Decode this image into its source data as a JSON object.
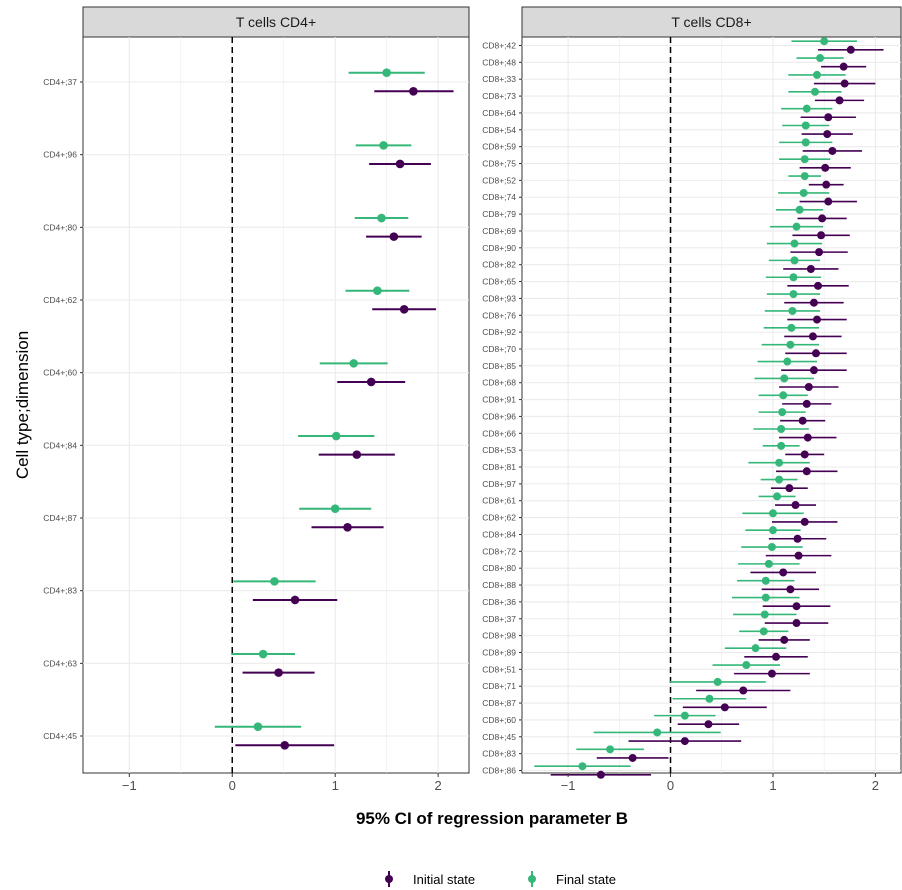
{
  "chart_data": {
    "type": "scatter",
    "xlabel": "95% CI of regression parameter B",
    "ylabel": "Cell type;dimension",
    "grid": true,
    "reference_line_x": 0,
    "legend": {
      "position": "bottom",
      "entries": [
        {
          "label": "Initial state",
          "color": "#440154"
        },
        {
          "label": "Final state",
          "color": "#35b779"
        }
      ]
    },
    "panels": [
      {
        "title": "T cells CD4+",
        "xlim": [
          -1.45,
          2.3
        ],
        "xticks": [
          -1,
          0,
          1,
          2
        ],
        "categories": [
          "CD4+;37",
          "CD4+;96",
          "CD4+;80",
          "CD4+;62",
          "CD4+;60",
          "CD4+;84",
          "CD4+;87",
          "CD4+;83",
          "CD4+;63",
          "CD4+;45"
        ],
        "initial": [
          {
            "est": 1.76,
            "lo": 1.38,
            "hi": 2.15
          },
          {
            "est": 1.63,
            "lo": 1.33,
            "hi": 1.93
          },
          {
            "est": 1.57,
            "lo": 1.3,
            "hi": 1.84
          },
          {
            "est": 1.67,
            "lo": 1.36,
            "hi": 1.98
          },
          {
            "est": 1.35,
            "lo": 1.02,
            "hi": 1.68
          },
          {
            "est": 1.21,
            "lo": 0.84,
            "hi": 1.58
          },
          {
            "est": 1.12,
            "lo": 0.77,
            "hi": 1.47
          },
          {
            "est": 0.61,
            "lo": 0.2,
            "hi": 1.02
          },
          {
            "est": 0.45,
            "lo": 0.1,
            "hi": 0.8
          },
          {
            "est": 0.51,
            "lo": 0.03,
            "hi": 0.99
          }
        ],
        "final": [
          {
            "est": 1.5,
            "lo": 1.13,
            "hi": 1.87
          },
          {
            "est": 1.47,
            "lo": 1.2,
            "hi": 1.74
          },
          {
            "est": 1.45,
            "lo": 1.19,
            "hi": 1.71
          },
          {
            "est": 1.41,
            "lo": 1.1,
            "hi": 1.72
          },
          {
            "est": 1.18,
            "lo": 0.85,
            "hi": 1.51
          },
          {
            "est": 1.01,
            "lo": 0.64,
            "hi": 1.38
          },
          {
            "est": 1.0,
            "lo": 0.65,
            "hi": 1.35
          },
          {
            "est": 0.41,
            "lo": 0.01,
            "hi": 0.81
          },
          {
            "est": 0.3,
            "lo": -0.01,
            "hi": 0.61
          },
          {
            "est": 0.25,
            "lo": -0.17,
            "hi": 0.67
          }
        ]
      },
      {
        "title": "T cells CD8+",
        "xlim": [
          -1.45,
          2.25
        ],
        "xticks": [
          -1,
          0,
          1,
          2
        ],
        "categories": [
          "CD8+;42",
          "CD8+;48",
          "CD8+;33",
          "CD8+;73",
          "CD8+;64",
          "CD8+;54",
          "CD8+;59",
          "CD8+;75",
          "CD8+;52",
          "CD8+;74",
          "CD8+;79",
          "CD8+;69",
          "CD8+;90",
          "CD8+;82",
          "CD8+;65",
          "CD8+;93",
          "CD8+;76",
          "CD8+;92",
          "CD8+;70",
          "CD8+;85",
          "CD8+;68",
          "CD8+;91",
          "CD8+;96",
          "CD8+;66",
          "CD8+;53",
          "CD8+;81",
          "CD8+;97",
          "CD8+;61",
          "CD8+;62",
          "CD8+;84",
          "CD8+;72",
          "CD8+;80",
          "CD8+;88",
          "CD8+;36",
          "CD8+;37",
          "CD8+;98",
          "CD8+;89",
          "CD8+;51",
          "CD8+;71",
          "CD8+;87",
          "CD8+;60",
          "CD8+;45",
          "CD8+;83",
          "CD8+;86"
        ],
        "initial": [
          {
            "est": 1.76,
            "lo": 1.44,
            "hi": 2.08
          },
          {
            "est": 1.69,
            "lo": 1.47,
            "hi": 1.91
          },
          {
            "est": 1.7,
            "lo": 1.4,
            "hi": 2.0
          },
          {
            "est": 1.65,
            "lo": 1.41,
            "hi": 1.89
          },
          {
            "est": 1.54,
            "lo": 1.27,
            "hi": 1.81
          },
          {
            "est": 1.53,
            "lo": 1.28,
            "hi": 1.78
          },
          {
            "est": 1.58,
            "lo": 1.29,
            "hi": 1.87
          },
          {
            "est": 1.51,
            "lo": 1.26,
            "hi": 1.76
          },
          {
            "est": 1.52,
            "lo": 1.35,
            "hi": 1.69
          },
          {
            "est": 1.54,
            "lo": 1.26,
            "hi": 1.82
          },
          {
            "est": 1.48,
            "lo": 1.24,
            "hi": 1.72
          },
          {
            "est": 1.47,
            "lo": 1.19,
            "hi": 1.75
          },
          {
            "est": 1.45,
            "lo": 1.17,
            "hi": 1.73
          },
          {
            "est": 1.37,
            "lo": 1.1,
            "hi": 1.64
          },
          {
            "est": 1.44,
            "lo": 1.14,
            "hi": 1.74
          },
          {
            "est": 1.4,
            "lo": 1.11,
            "hi": 1.69
          },
          {
            "est": 1.43,
            "lo": 1.14,
            "hi": 1.72
          },
          {
            "est": 1.39,
            "lo": 1.11,
            "hi": 1.67
          },
          {
            "est": 1.42,
            "lo": 1.12,
            "hi": 1.72
          },
          {
            "est": 1.4,
            "lo": 1.08,
            "hi": 1.72
          },
          {
            "est": 1.35,
            "lo": 1.06,
            "hi": 1.64
          },
          {
            "est": 1.33,
            "lo": 1.09,
            "hi": 1.57
          },
          {
            "est": 1.29,
            "lo": 1.07,
            "hi": 1.51
          },
          {
            "est": 1.34,
            "lo": 1.06,
            "hi": 1.62
          },
          {
            "est": 1.31,
            "lo": 1.12,
            "hi": 1.5
          },
          {
            "est": 1.33,
            "lo": 1.03,
            "hi": 1.63
          },
          {
            "est": 1.16,
            "lo": 0.98,
            "hi": 1.34
          },
          {
            "est": 1.22,
            "lo": 1.02,
            "hi": 1.42
          },
          {
            "est": 1.31,
            "lo": 0.99,
            "hi": 1.63
          },
          {
            "est": 1.24,
            "lo": 0.96,
            "hi": 1.52
          },
          {
            "est": 1.25,
            "lo": 0.93,
            "hi": 1.57
          },
          {
            "est": 1.1,
            "lo": 0.78,
            "hi": 1.42
          },
          {
            "est": 1.17,
            "lo": 0.89,
            "hi": 1.45
          },
          {
            "est": 1.23,
            "lo": 0.9,
            "hi": 1.56
          },
          {
            "est": 1.23,
            "lo": 0.92,
            "hi": 1.54
          },
          {
            "est": 1.11,
            "lo": 0.86,
            "hi": 1.36
          },
          {
            "est": 1.03,
            "lo": 0.72,
            "hi": 1.34
          },
          {
            "est": 0.99,
            "lo": 0.62,
            "hi": 1.36
          },
          {
            "est": 0.71,
            "lo": 0.25,
            "hi": 1.17
          },
          {
            "est": 0.53,
            "lo": 0.12,
            "hi": 0.94
          },
          {
            "est": 0.37,
            "lo": 0.07,
            "hi": 0.67
          },
          {
            "est": 0.14,
            "lo": -0.41,
            "hi": 0.69
          },
          {
            "est": -0.37,
            "lo": -0.72,
            "hi": -0.02
          },
          {
            "est": -0.68,
            "lo": -1.17,
            "hi": -0.19
          }
        ],
        "final": [
          {
            "est": 1.5,
            "lo": 1.18,
            "hi": 1.82
          },
          {
            "est": 1.46,
            "lo": 1.23,
            "hi": 1.69
          },
          {
            "est": 1.43,
            "lo": 1.15,
            "hi": 1.71
          },
          {
            "est": 1.41,
            "lo": 1.15,
            "hi": 1.67
          },
          {
            "est": 1.33,
            "lo": 1.08,
            "hi": 1.58
          },
          {
            "est": 1.32,
            "lo": 1.09,
            "hi": 1.55
          },
          {
            "est": 1.32,
            "lo": 1.06,
            "hi": 1.58
          },
          {
            "est": 1.31,
            "lo": 1.06,
            "hi": 1.56
          },
          {
            "est": 1.31,
            "lo": 1.15,
            "hi": 1.47
          },
          {
            "est": 1.3,
            "lo": 1.05,
            "hi": 1.55
          },
          {
            "est": 1.26,
            "lo": 1.03,
            "hi": 1.49
          },
          {
            "est": 1.23,
            "lo": 0.97,
            "hi": 1.49
          },
          {
            "est": 1.21,
            "lo": 0.94,
            "hi": 1.48
          },
          {
            "est": 1.21,
            "lo": 0.96,
            "hi": 1.46
          },
          {
            "est": 1.2,
            "lo": 0.93,
            "hi": 1.47
          },
          {
            "est": 1.2,
            "lo": 0.94,
            "hi": 1.46
          },
          {
            "est": 1.19,
            "lo": 0.92,
            "hi": 1.46
          },
          {
            "est": 1.18,
            "lo": 0.91,
            "hi": 1.45
          },
          {
            "est": 1.17,
            "lo": 0.89,
            "hi": 1.45
          },
          {
            "est": 1.14,
            "lo": 0.85,
            "hi": 1.43
          },
          {
            "est": 1.11,
            "lo": 0.82,
            "hi": 1.4
          },
          {
            "est": 1.1,
            "lo": 0.86,
            "hi": 1.34
          },
          {
            "est": 1.09,
            "lo": 0.86,
            "hi": 1.32
          },
          {
            "est": 1.08,
            "lo": 0.81,
            "hi": 1.35
          },
          {
            "est": 1.08,
            "lo": 0.9,
            "hi": 1.26
          },
          {
            "est": 1.06,
            "lo": 0.76,
            "hi": 1.36
          },
          {
            "est": 1.06,
            "lo": 0.88,
            "hi": 1.24
          },
          {
            "est": 1.04,
            "lo": 0.86,
            "hi": 1.22
          },
          {
            "est": 1.0,
            "lo": 0.7,
            "hi": 1.3
          },
          {
            "est": 1.0,
            "lo": 0.73,
            "hi": 1.27
          },
          {
            "est": 0.99,
            "lo": 0.69,
            "hi": 1.29
          },
          {
            "est": 0.96,
            "lo": 0.66,
            "hi": 1.26
          },
          {
            "est": 0.93,
            "lo": 0.65,
            "hi": 1.21
          },
          {
            "est": 0.93,
            "lo": 0.6,
            "hi": 1.26
          },
          {
            "est": 0.92,
            "lo": 0.61,
            "hi": 1.23
          },
          {
            "est": 0.91,
            "lo": 0.67,
            "hi": 1.15
          },
          {
            "est": 0.83,
            "lo": 0.53,
            "hi": 1.13
          },
          {
            "est": 0.74,
            "lo": 0.41,
            "hi": 1.07
          },
          {
            "est": 0.46,
            "lo": -0.01,
            "hi": 0.93
          },
          {
            "est": 0.38,
            "lo": 0.02,
            "hi": 0.74
          },
          {
            "est": 0.14,
            "lo": -0.16,
            "hi": 0.44
          },
          {
            "est": -0.13,
            "lo": -0.75,
            "hi": 0.49
          },
          {
            "est": -0.59,
            "lo": -0.92,
            "hi": -0.26
          },
          {
            "est": -0.86,
            "lo": -1.33,
            "hi": -0.39
          }
        ]
      }
    ]
  }
}
